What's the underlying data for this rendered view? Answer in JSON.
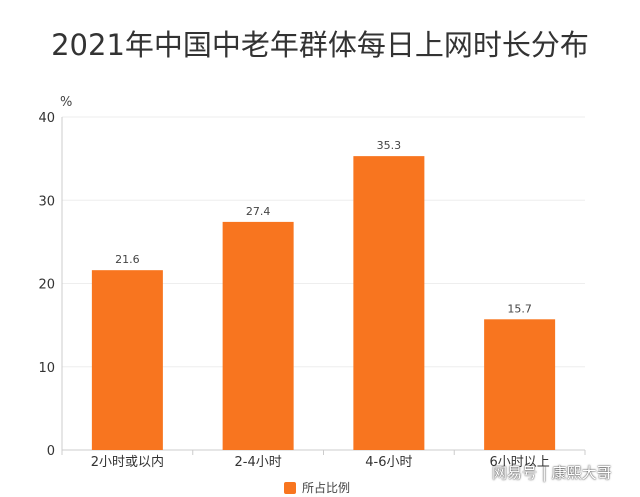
{
  "chart_data": {
    "type": "bar",
    "title": "2021年中国中老年群体每日上网时长分布",
    "ylabel": "%",
    "xlabel": "",
    "categories": [
      "2小时或以内",
      "2-4小时",
      "4-6小时",
      "6小时以上"
    ],
    "series": [
      {
        "name": "所占比例",
        "values": [
          21.6,
          27.4,
          35.3,
          15.7
        ]
      }
    ],
    "ylim": [
      0,
      40
    ],
    "yticks": [
      "0",
      "10",
      "20",
      "30",
      "40"
    ],
    "data_labels": [
      "21.6",
      "27.4",
      "35.3",
      "15.7"
    ],
    "grid": true,
    "legend_position": "bottom-center"
  },
  "colors": {
    "bar": "#f8751f",
    "grid": "#eeeeee",
    "axis": "#cccccc"
  },
  "watermark": "网易号 | 康熙大哥"
}
